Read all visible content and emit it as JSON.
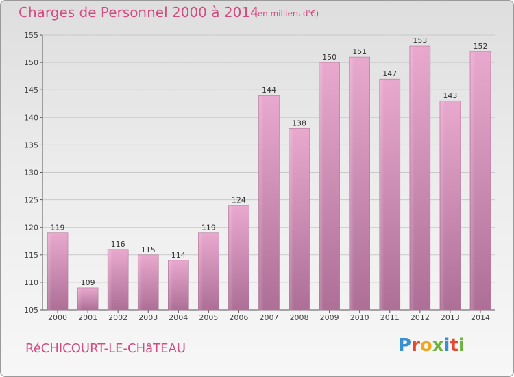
{
  "header": {
    "title": "Charges de Personnel 2000 à 2014",
    "subtitle": "(en milliers d'€)"
  },
  "footer": {
    "place": "RéCHICOURT-LE-CHâTEAU",
    "brand_letters": [
      {
        "ch": "P",
        "color": "#3a8fd1"
      },
      {
        "ch": "r",
        "color": "#e8472f"
      },
      {
        "ch": "o",
        "color": "#f2a71b"
      },
      {
        "ch": "x",
        "color": "#6db33f"
      },
      {
        "ch": "i",
        "color": "#3a8fd1"
      },
      {
        "ch": "t",
        "color": "#e8472f"
      },
      {
        "ch": "i",
        "color": "#6db33f"
      }
    ]
  },
  "colors": {
    "accent": "#d24b82",
    "bar_top": "#e9a9cf",
    "bar_bottom": "#ad6f96"
  },
  "chart_data": {
    "type": "bar",
    "categories": [
      "2000",
      "2001",
      "2002",
      "2003",
      "2004",
      "2005",
      "2006",
      "2007",
      "2008",
      "2009",
      "2010",
      "2011",
      "2012",
      "2013",
      "2014"
    ],
    "values": [
      119,
      109,
      116,
      115,
      114,
      119,
      124,
      144,
      138,
      150,
      151,
      147,
      153,
      143,
      152
    ],
    "data_labels": [
      "119",
      "109",
      "116",
      "115",
      "114",
      "119",
      "124",
      "144",
      "138",
      "150",
      "151",
      "147",
      "153",
      "143",
      "152"
    ],
    "title": "Charges de Personnel 2000 à 2014",
    "subtitle": "(en milliers d'€)",
    "ylim": [
      105,
      155
    ],
    "yticks": [
      105,
      110,
      115,
      120,
      125,
      130,
      135,
      140,
      145,
      150,
      155
    ],
    "grid": true,
    "legend": "none"
  }
}
